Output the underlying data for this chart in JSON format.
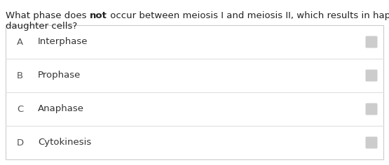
{
  "question_line1_parts": [
    {
      "text": "What phase does ",
      "bold": false
    },
    {
      "text": "not",
      "bold": true
    },
    {
      "text": " occur between meiosis I and meiosis II, which results in haploid",
      "bold": false
    }
  ],
  "question_line2": "daughter cells?",
  "options": [
    {
      "letter": "A",
      "text": "Interphase"
    },
    {
      "letter": "B",
      "text": "Prophase"
    },
    {
      "letter": "C",
      "text": "Anaphase"
    },
    {
      "letter": "D",
      "text": "Cytokinesis"
    }
  ],
  "bg_color": "#ffffff",
  "box_bg": "#ffffff",
  "box_border": "#cccccc",
  "option_divider": "#e0e0e0",
  "letter_color": "#555555",
  "text_color": "#333333",
  "question_color": "#222222",
  "checkbox_color": "#cccccc",
  "font_size_question": 9.5,
  "font_size_option": 9.5
}
